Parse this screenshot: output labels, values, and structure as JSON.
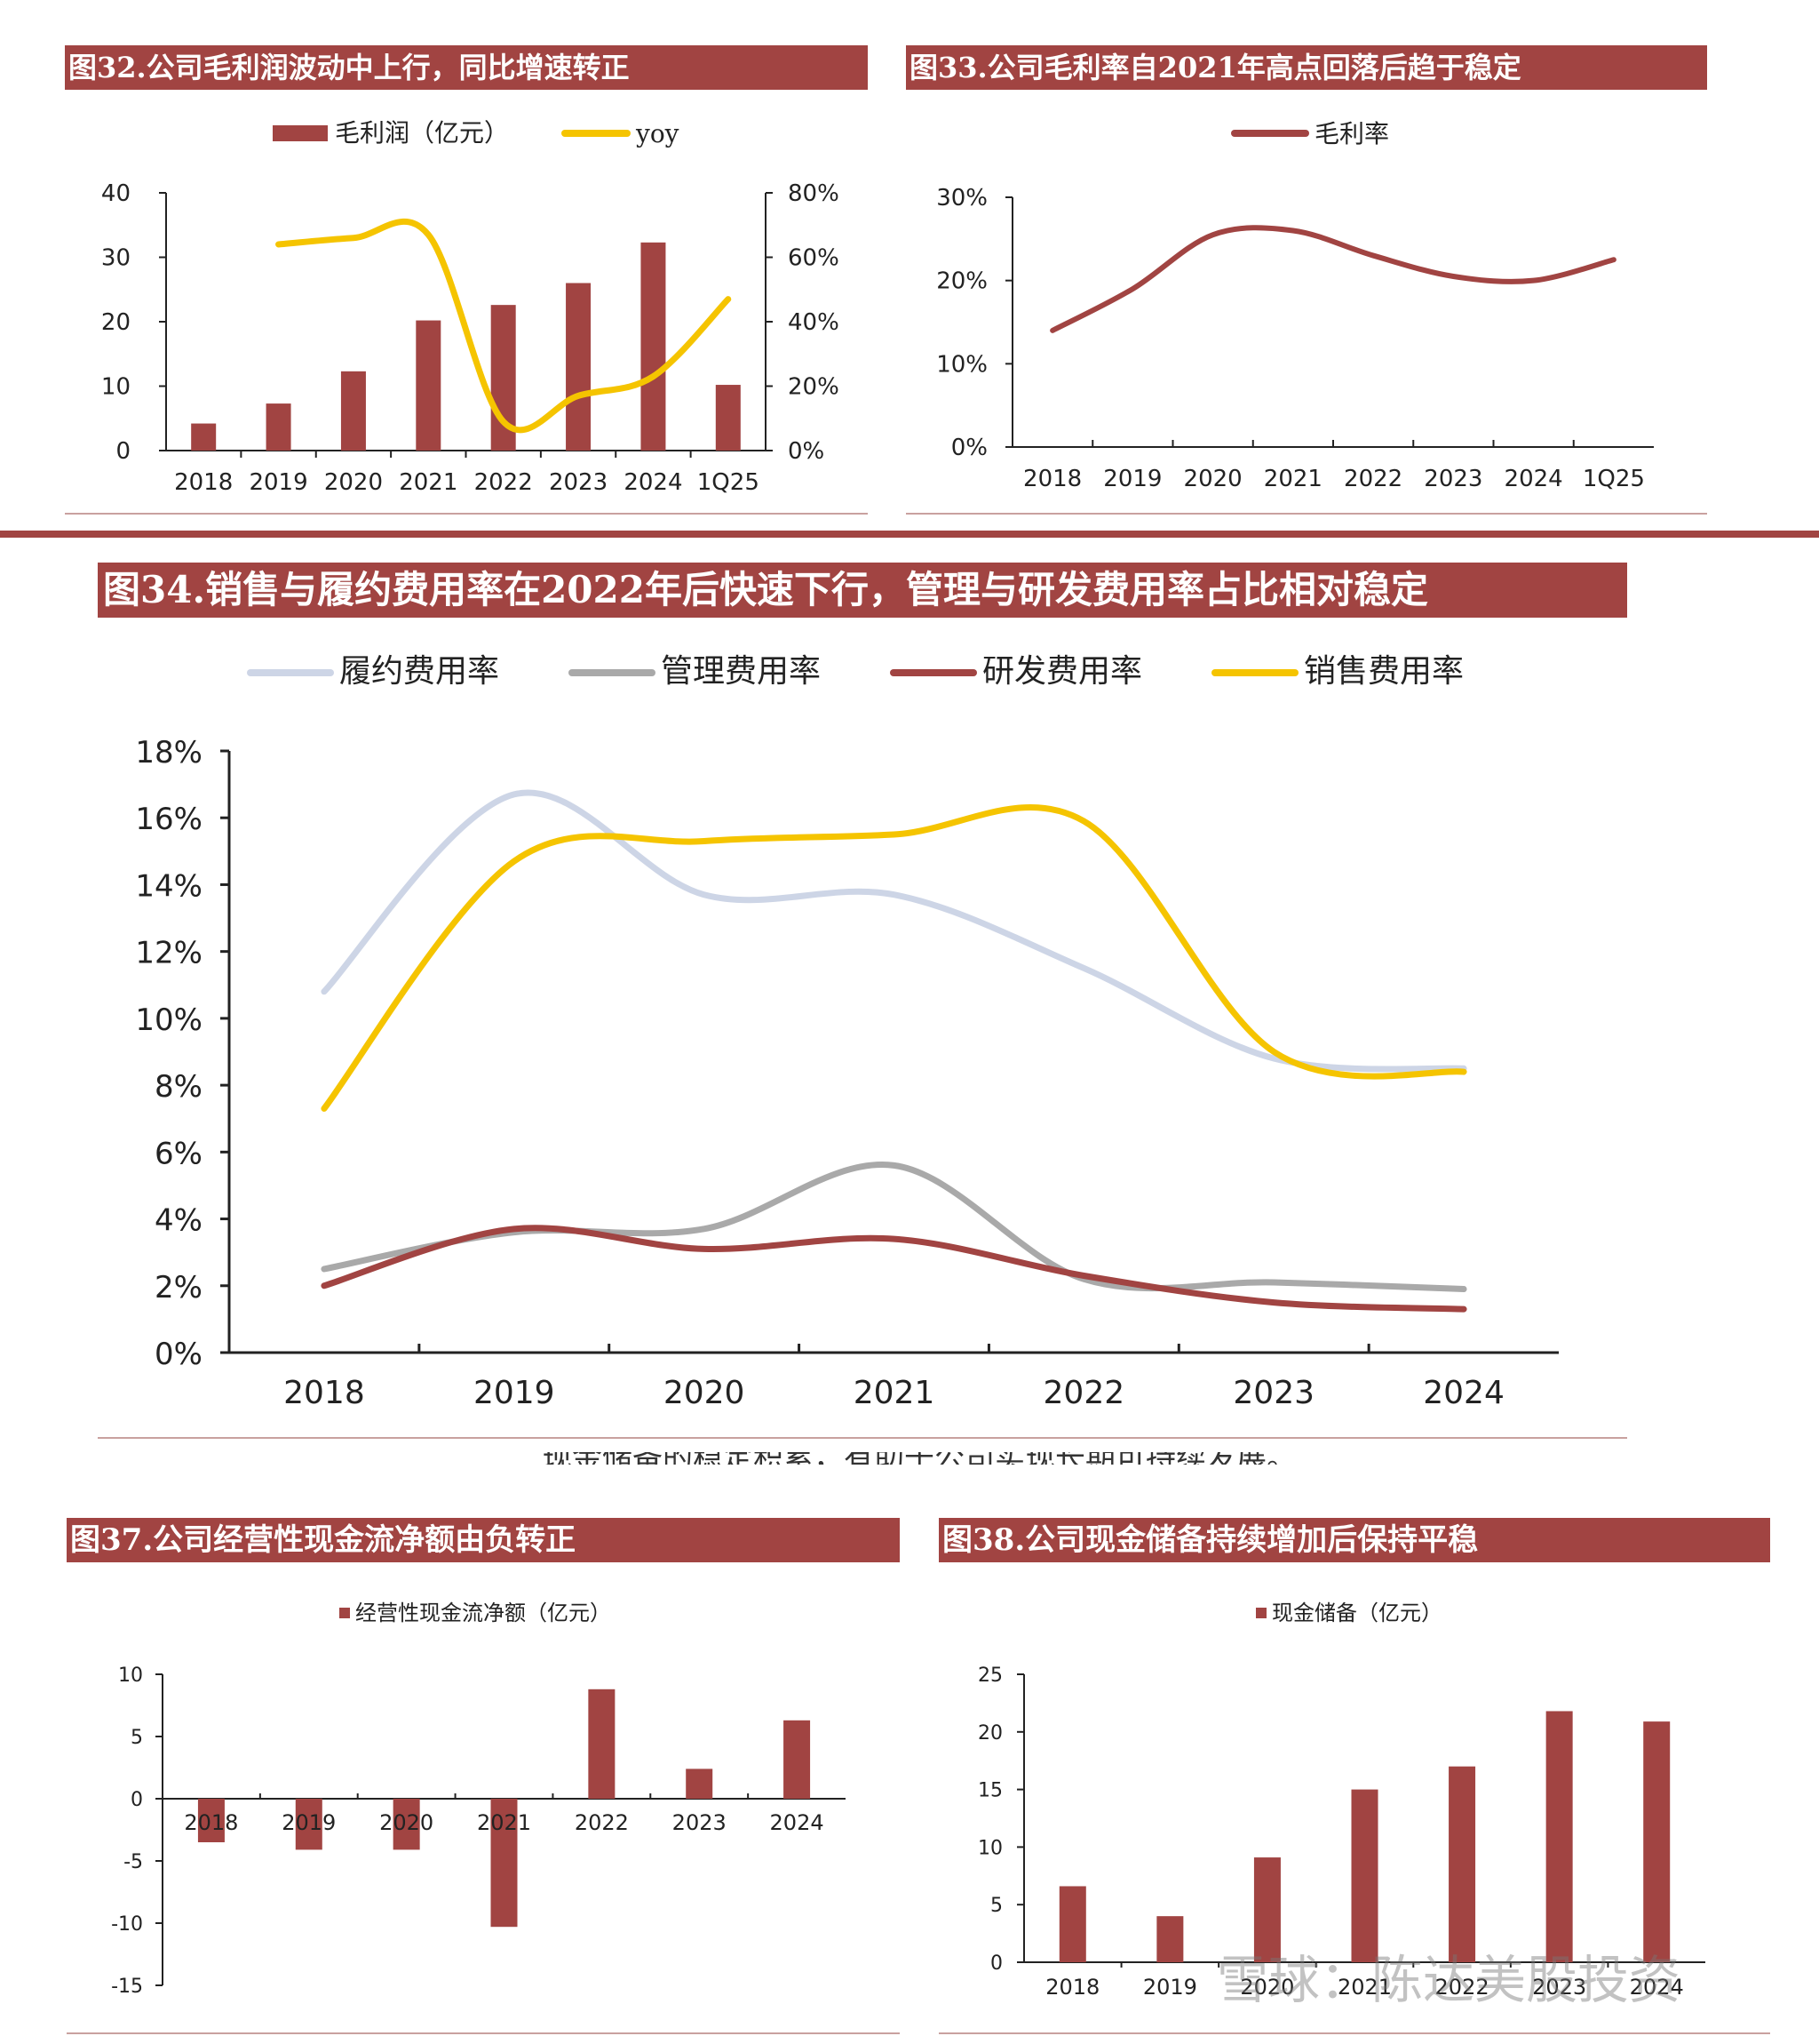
{
  "colors": {
    "accent": "#a14442",
    "bar": "#a14442",
    "yellow": "#f5c400",
    "lightblue": "#cdd5e6",
    "gray": "#a9a9a9"
  },
  "overlap_text": "现金储备的稳定积累，有助于公司实现长期可持续发展。",
  "watermark": "雪球：陈达美股投资",
  "chart_data": [
    {
      "id": "fig32",
      "type": "bar",
      "title": "图32.公司毛利润波动中上行，同比增速转正",
      "categories": [
        "2018",
        "2019",
        "2020",
        "2021",
        "2022",
        "2023",
        "2024",
        "1Q25"
      ],
      "series": [
        {
          "name": "毛利润（亿元）",
          "type": "bar",
          "axis": "left",
          "color": "#a14442",
          "values": [
            4.2,
            7.3,
            12.3,
            20.2,
            22.6,
            26.0,
            32.3,
            10.2
          ]
        },
        {
          "name": "yoy",
          "type": "line",
          "axis": "right",
          "color": "#f5c400",
          "values": [
            null,
            64,
            66,
            67,
            9,
            17,
            23,
            47
          ]
        }
      ],
      "ylim": [
        0,
        40
      ],
      "yticks": [
        "0",
        "10",
        "20",
        "30",
        "40"
      ],
      "y2lim": [
        0,
        80
      ],
      "y2ticks": [
        "0%",
        "20%",
        "40%",
        "60%",
        "80%"
      ],
      "legend": "top"
    },
    {
      "id": "fig33",
      "type": "line",
      "title": "图33.公司毛利率自2021年高点回落后趋于稳定",
      "categories": [
        "2018",
        "2019",
        "2020",
        "2021",
        "2022",
        "2023",
        "2024",
        "1Q25"
      ],
      "series": [
        {
          "name": "毛利率",
          "color": "#a14442",
          "values": [
            14,
            19,
            25.5,
            26,
            23,
            20.5,
            20,
            22.5
          ]
        }
      ],
      "ylim": [
        0,
        30
      ],
      "yticks": [
        "0%",
        "10%",
        "20%",
        "30%"
      ],
      "legend": "top"
    },
    {
      "id": "fig34",
      "type": "line",
      "title": "图34.销售与履约费用率在2022年后快速下行，管理与研发费用率占比相对稳定",
      "categories": [
        "2018",
        "2019",
        "2020",
        "2021",
        "2022",
        "2023",
        "2024"
      ],
      "series": [
        {
          "name": "履约费用率",
          "color": "#cdd5e6",
          "values": [
            10.8,
            16.7,
            13.7,
            13.7,
            11.5,
            8.8,
            8.5
          ]
        },
        {
          "name": "管理费用率",
          "color": "#a9a9a9",
          "values": [
            2.5,
            3.6,
            3.7,
            5.6,
            2.2,
            2.1,
            1.9
          ]
        },
        {
          "name": "研发费用率",
          "color": "#a14442",
          "values": [
            2.0,
            3.7,
            3.1,
            3.4,
            2.3,
            1.5,
            1.3
          ]
        },
        {
          "name": "销售费用率",
          "color": "#f5c400",
          "values": [
            7.3,
            14.7,
            15.3,
            15.5,
            15.9,
            9.0,
            8.4
          ]
        }
      ],
      "ylim": [
        0,
        18
      ],
      "yticks": [
        "0%",
        "2%",
        "4%",
        "6%",
        "8%",
        "10%",
        "12%",
        "14%",
        "16%",
        "18%"
      ],
      "legend": "top"
    },
    {
      "id": "fig37",
      "type": "bar",
      "title": "图37.公司经营性现金流净额由负转正",
      "categories": [
        "2018",
        "2019",
        "2020",
        "2021",
        "2022",
        "2023",
        "2024"
      ],
      "series": [
        {
          "name": "经营性现金流净额（亿元）",
          "color": "#a14442",
          "values": [
            -3.5,
            -4.1,
            -4.1,
            -10.3,
            8.8,
            2.4,
            6.3
          ]
        }
      ],
      "ylim": [
        -15,
        10
      ],
      "yticks": [
        "-15",
        "-10",
        "-5",
        "0",
        "5",
        "10"
      ],
      "legend": "top"
    },
    {
      "id": "fig38",
      "type": "bar",
      "title": "图38.公司现金储备持续增加后保持平稳",
      "categories": [
        "2018",
        "2019",
        "2020",
        "2021",
        "2022",
        "2023",
        "2024"
      ],
      "series": [
        {
          "name": "现金储备（亿元）",
          "color": "#a14442",
          "values": [
            6.6,
            4.0,
            9.1,
            15.0,
            17.0,
            21.8,
            20.9
          ]
        }
      ],
      "ylim": [
        0,
        25
      ],
      "yticks": [
        "0",
        "5",
        "10",
        "15",
        "20",
        "25"
      ],
      "legend": "top"
    }
  ]
}
